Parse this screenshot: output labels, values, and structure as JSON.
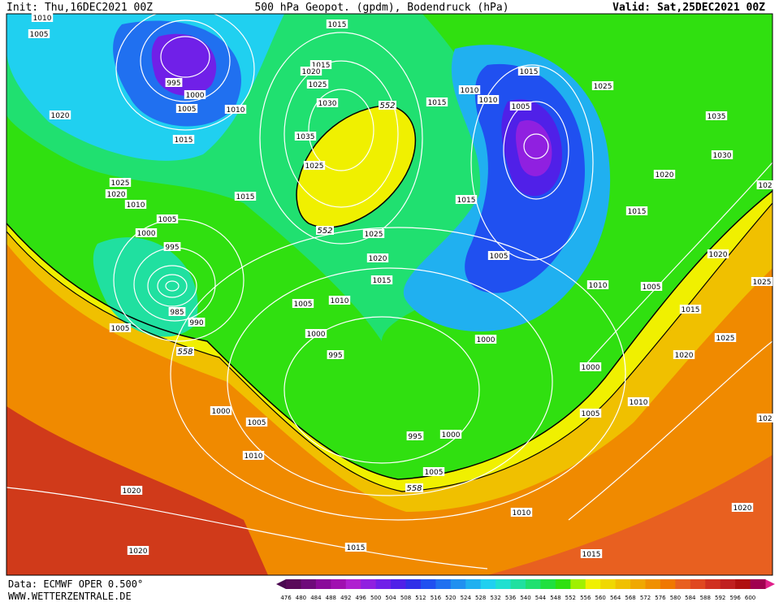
{
  "header": {
    "init": "Init: Thu,16DEC2021 00Z",
    "title": "500 hPa Geopot. (gpdm), Bodendruck (hPa)",
    "valid": "Valid: Sat,25DEC2021 00Z"
  },
  "footer": {
    "data": "Data: ECMWF OPER 0.500°",
    "site": "WWW.WETTERZENTRALE.DE"
  },
  "colorbar": {
    "ticks": [
      "476",
      "480",
      "484",
      "488",
      "492",
      "496",
      "500",
      "504",
      "508",
      "512",
      "516",
      "520",
      "524",
      "528",
      "532",
      "536",
      "540",
      "544",
      "548",
      "552",
      "556",
      "560",
      "564",
      "568",
      "572",
      "576",
      "580",
      "584",
      "588",
      "592",
      "596",
      "600"
    ],
    "colors": [
      "#5a0a5a",
      "#6e0a7a",
      "#8a0a9a",
      "#a010b0",
      "#b020d0",
      "#9020e0",
      "#7020e8",
      "#5020e8",
      "#3030e8",
      "#2050f0",
      "#2070f0",
      "#2090f0",
      "#20b0f0",
      "#20d0f0",
      "#20e0d0",
      "#20e0a0",
      "#20e070",
      "#20e040",
      "#30e010",
      "#a0f000",
      "#f0f000",
      "#f0d800",
      "#f0c000",
      "#f0a800",
      "#f09000",
      "#f07800",
      "#e86020",
      "#e04820",
      "#d03020",
      "#c02020",
      "#b01010",
      "#a00050"
    ],
    "left_arrow_color": "#4a0850",
    "right_arrow_color": "#e0208a"
  },
  "isobar_labels": [
    "1010",
    "1005",
    "995",
    "1000",
    "1005",
    "1010",
    "1015",
    "1020",
    "1025",
    "1020",
    "1010",
    "1005",
    "1000",
    "995",
    "985",
    "990",
    "1005",
    "1015",
    "1015",
    "1020",
    "1025",
    "1030",
    "1035",
    "1025",
    "1015",
    "1025",
    "1020",
    "1015",
    "1010",
    "1005",
    "1000",
    "995",
    "1000",
    "1005",
    "1010",
    "995",
    "1000",
    "1005",
    "1010",
    "1015",
    "1015",
    "1020",
    "1020",
    "1015",
    "1010",
    "1010",
    "1015",
    "1005",
    "1025",
    "1035",
    "1030",
    "1020",
    "102",
    "1015",
    "1015",
    "1005",
    "1010",
    "1005",
    "1020",
    "1025",
    "1015",
    "1025",
    "1020",
    "1000",
    "1000",
    "1010",
    "1005",
    "102",
    "1020"
  ],
  "contour_labels": [
    "552",
    "552",
    "558",
    "558"
  ]
}
